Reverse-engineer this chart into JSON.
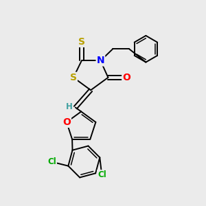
{
  "background_color": "#ebebeb",
  "figsize": [
    3.0,
    3.0
  ],
  "dpi": 100,
  "atom_colors": {
    "S": "#b8a000",
    "N": "#0000ff",
    "O": "#ff0000",
    "Cl": "#00aa00",
    "H": "#40a0a0",
    "C": "#000000"
  }
}
